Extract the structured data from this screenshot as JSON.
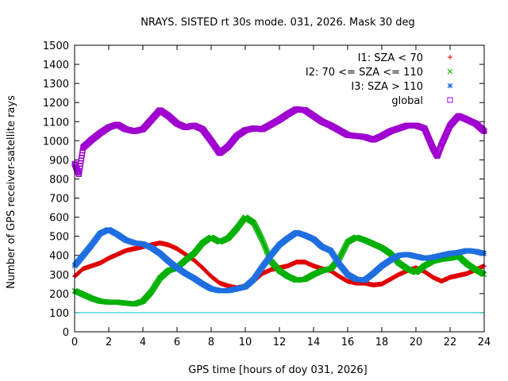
{
  "chart_data": {
    "type": "scatter",
    "title": "NRAYS. SISTED rt 30s mode. 031, 2026. Mask 30 deg",
    "xlabel": "GPS time [hours of doy 031, 2026]",
    "ylabel": "Number of GPS receiver-satellite rays",
    "xlim": [
      0,
      24
    ],
    "ylim": [
      0,
      1500
    ],
    "xticks": [
      0,
      2,
      4,
      6,
      8,
      10,
      12,
      14,
      16,
      18,
      20,
      22,
      24
    ],
    "yticks": [
      0,
      100,
      200,
      300,
      400,
      500,
      600,
      700,
      800,
      900,
      1000,
      1100,
      1200,
      1300,
      1400,
      1500
    ],
    "reference_line": {
      "y": 100,
      "color": "#00c0c0"
    },
    "legend_position": "top-right",
    "series": [
      {
        "name": "I1: SZA < 70",
        "marker": "+",
        "color": "#e00000",
        "points": [
          [
            0,
            290
          ],
          [
            0.5,
            330
          ],
          [
            1,
            345
          ],
          [
            1.5,
            360
          ],
          [
            2,
            385
          ],
          [
            2.5,
            405
          ],
          [
            3,
            425
          ],
          [
            3.5,
            435
          ],
          [
            4,
            445
          ],
          [
            4.5,
            455
          ],
          [
            5,
            465
          ],
          [
            5.5,
            455
          ],
          [
            6,
            435
          ],
          [
            6.5,
            405
          ],
          [
            7,
            375
          ],
          [
            7.5,
            335
          ],
          [
            8,
            290
          ],
          [
            8.5,
            255
          ],
          [
            9,
            240
          ],
          [
            9.5,
            230
          ],
          [
            10,
            240
          ],
          [
            10.5,
            265
          ],
          [
            11,
            305
          ],
          [
            11.5,
            325
          ],
          [
            12,
            335
          ],
          [
            12.5,
            345
          ],
          [
            13,
            365
          ],
          [
            13.5,
            365
          ],
          [
            14,
            345
          ],
          [
            14.5,
            330
          ],
          [
            15,
            320
          ],
          [
            15.5,
            290
          ],
          [
            16,
            265
          ],
          [
            16.5,
            255
          ],
          [
            17,
            255
          ],
          [
            17.5,
            245
          ],
          [
            18,
            250
          ],
          [
            18.5,
            275
          ],
          [
            19,
            300
          ],
          [
            19.5,
            320
          ],
          [
            20,
            335
          ],
          [
            20.5,
            315
          ],
          [
            21,
            285
          ],
          [
            21.5,
            265
          ],
          [
            22,
            285
          ],
          [
            22.5,
            295
          ],
          [
            23,
            305
          ],
          [
            23.5,
            325
          ],
          [
            24,
            345
          ]
        ]
      },
      {
        "name": "I2: 70 <= SZA <= 110",
        "marker": "x",
        "color": "#00b000",
        "points": [
          [
            0,
            215
          ],
          [
            0.5,
            195
          ],
          [
            1,
            175
          ],
          [
            1.5,
            160
          ],
          [
            2,
            155
          ],
          [
            2.5,
            155
          ],
          [
            3,
            150
          ],
          [
            3.5,
            145
          ],
          [
            4,
            160
          ],
          [
            4.5,
            210
          ],
          [
            5,
            280
          ],
          [
            5.5,
            320
          ],
          [
            6,
            335
          ],
          [
            6.5,
            375
          ],
          [
            7,
            410
          ],
          [
            7.5,
            465
          ],
          [
            8,
            495
          ],
          [
            8.5,
            470
          ],
          [
            9,
            490
          ],
          [
            9.5,
            540
          ],
          [
            10,
            600
          ],
          [
            10.5,
            570
          ],
          [
            11,
            480
          ],
          [
            11.5,
            370
          ],
          [
            12,
            320
          ],
          [
            12.5,
            290
          ],
          [
            13,
            270
          ],
          [
            13.5,
            275
          ],
          [
            14,
            300
          ],
          [
            14.5,
            320
          ],
          [
            15,
            330
          ],
          [
            15.5,
            380
          ],
          [
            16,
            470
          ],
          [
            16.5,
            495
          ],
          [
            17,
            480
          ],
          [
            17.5,
            460
          ],
          [
            18,
            440
          ],
          [
            18.5,
            410
          ],
          [
            19,
            360
          ],
          [
            19.5,
            330
          ],
          [
            20,
            310
          ],
          [
            20.5,
            345
          ],
          [
            21,
            370
          ],
          [
            21.5,
            380
          ],
          [
            22,
            385
          ],
          [
            22.5,
            395
          ],
          [
            23,
            355
          ],
          [
            23.5,
            325
          ],
          [
            24,
            300
          ]
        ]
      },
      {
        "name": "I3: SZA > 110",
        "marker": "*",
        "color": "#1f6fe0",
        "points": [
          [
            0,
            345
          ],
          [
            0.5,
            400
          ],
          [
            1,
            455
          ],
          [
            1.5,
            515
          ],
          [
            2,
            535
          ],
          [
            2.5,
            510
          ],
          [
            3,
            480
          ],
          [
            3.5,
            465
          ],
          [
            4,
            460
          ],
          [
            4.5,
            440
          ],
          [
            5,
            410
          ],
          [
            5.5,
            370
          ],
          [
            6,
            335
          ],
          [
            6.5,
            305
          ],
          [
            7,
            280
          ],
          [
            7.5,
            250
          ],
          [
            8,
            225
          ],
          [
            8.5,
            215
          ],
          [
            9,
            215
          ],
          [
            9.5,
            225
          ],
          [
            10,
            235
          ],
          [
            10.5,
            275
          ],
          [
            11,
            340
          ],
          [
            11.5,
            400
          ],
          [
            12,
            455
          ],
          [
            12.5,
            490
          ],
          [
            13,
            520
          ],
          [
            13.5,
            505
          ],
          [
            14,
            485
          ],
          [
            14.5,
            445
          ],
          [
            15,
            425
          ],
          [
            15.5,
            355
          ],
          [
            16,
            300
          ],
          [
            16.5,
            275
          ],
          [
            17,
            270
          ],
          [
            17.5,
            305
          ],
          [
            18,
            345
          ],
          [
            18.5,
            375
          ],
          [
            19,
            400
          ],
          [
            19.5,
            405
          ],
          [
            20,
            395
          ],
          [
            20.5,
            385
          ],
          [
            21,
            390
          ],
          [
            21.5,
            400
          ],
          [
            22,
            410
          ],
          [
            22.5,
            415
          ],
          [
            23,
            425
          ],
          [
            23.5,
            420
          ],
          [
            24,
            410
          ]
        ]
      },
      {
        "name": "global",
        "marker": "square",
        "color": "#a000d0",
        "points": [
          [
            0,
            880
          ],
          [
            0.25,
            825
          ],
          [
            0.5,
            965
          ],
          [
            1,
            1005
          ],
          [
            1.5,
            1040
          ],
          [
            2,
            1070
          ],
          [
            2.5,
            1085
          ],
          [
            3,
            1060
          ],
          [
            3.5,
            1050
          ],
          [
            4,
            1060
          ],
          [
            4.5,
            1110
          ],
          [
            5,
            1160
          ],
          [
            5.5,
            1130
          ],
          [
            6,
            1090
          ],
          [
            6.5,
            1070
          ],
          [
            7,
            1080
          ],
          [
            7.5,
            1060
          ],
          [
            8,
            1000
          ],
          [
            8.5,
            935
          ],
          [
            9,
            970
          ],
          [
            9.5,
            1025
          ],
          [
            10,
            1055
          ],
          [
            10.5,
            1065
          ],
          [
            11,
            1060
          ],
          [
            11.5,
            1085
          ],
          [
            12,
            1110
          ],
          [
            12.5,
            1140
          ],
          [
            13,
            1165
          ],
          [
            13.5,
            1160
          ],
          [
            14,
            1130
          ],
          [
            14.5,
            1100
          ],
          [
            15,
            1080
          ],
          [
            15.5,
            1055
          ],
          [
            16,
            1030
          ],
          [
            16.5,
            1025
          ],
          [
            17,
            1020
          ],
          [
            17.5,
            1005
          ],
          [
            18,
            1025
          ],
          [
            18.5,
            1050
          ],
          [
            19,
            1065
          ],
          [
            19.5,
            1080
          ],
          [
            20,
            1080
          ],
          [
            20.5,
            1065
          ],
          [
            21,
            960
          ],
          [
            21.25,
            920
          ],
          [
            21.5,
            980
          ],
          [
            22,
            1080
          ],
          [
            22.5,
            1130
          ],
          [
            23,
            1110
          ],
          [
            23.5,
            1090
          ],
          [
            24,
            1050
          ]
        ]
      }
    ]
  }
}
